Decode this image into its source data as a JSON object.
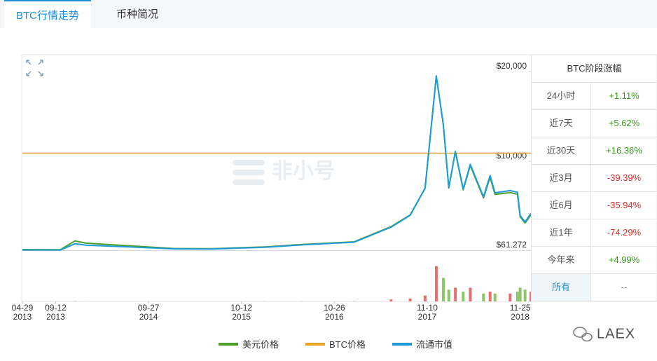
{
  "tabs": [
    "BTC行情走势",
    "币种简况"
  ],
  "watermark": "非小号",
  "brand": "LAEX",
  "chart_data": {
    "type": "line",
    "x": [
      "2013-04-29",
      "2013-10-01",
      "2013-11-30",
      "2014-01-15",
      "2014-06-15",
      "2015-01-15",
      "2015-06-15",
      "2016-01-15",
      "2016-06-15",
      "2017-01-15",
      "2017-06-15",
      "2017-09-01",
      "2017-11-01",
      "2017-12-17",
      "2018-01-15",
      "2018-02-06",
      "2018-03-05",
      "2018-04-06",
      "2018-05-05",
      "2018-06-28",
      "2018-07-25",
      "2018-08-14",
      "2018-10-15",
      "2018-11-14",
      "2018-11-25",
      "2018-12-15",
      "2019-01-08"
    ],
    "xlim": [
      "2013-04-29",
      "2019-01-08"
    ],
    "xticks": [
      {
        "value": "2013-04-29",
        "label": "04-29\n2013"
      },
      {
        "value": "2013-09-12",
        "label": "09-12\n2013"
      },
      {
        "value": "2014-09-27",
        "label": "09-27\n2014"
      },
      {
        "value": "2015-10-12",
        "label": "10-12\n2015"
      },
      {
        "value": "2016-10-26",
        "label": "10-26\n2016"
      },
      {
        "value": "2017-11-10",
        "label": "11-10\n2017"
      },
      {
        "value": "2018-11-25",
        "label": "11-25\n2018"
      }
    ],
    "ylim": [
      61.272,
      21720
    ],
    "yticks": [
      {
        "value": 20000,
        "label": "$20,000"
      },
      {
        "value": 10000,
        "label": "$10,000"
      },
      {
        "value": 61.272,
        "label": "$61.272"
      }
    ],
    "y2lim": [
      0,
      2
    ],
    "y3lim": [
      1.03,
      363.8
    ],
    "series": [
      {
        "name": "美元价格",
        "color": "#4a9e2a",
        "values": [
          140,
          125,
          1100,
          850,
          600,
          250,
          240,
          430,
          700,
          1000,
          2700,
          4000,
          7000,
          19500,
          14000,
          7000,
          11000,
          6800,
          9500,
          5900,
          8200,
          6300,
          6500,
          6300,
          3800,
          3100,
          4000
        ]
      },
      {
        "name": "BTC价格",
        "color": "#e8a524",
        "axis": "y2",
        "values": [
          1,
          1,
          1,
          1,
          1,
          1,
          1,
          1,
          1,
          1,
          1,
          1,
          1,
          1,
          1,
          1,
          1,
          1,
          1,
          1,
          1,
          1,
          1,
          1,
          1,
          1,
          1
        ]
      },
      {
        "name": "流通市值",
        "color": "#1f9bd7",
        "axis": "y3",
        "values": [
          1.55,
          1.48,
          13.2,
          10.4,
          7.7,
          3.5,
          3.4,
          6.5,
          11.0,
          16.1,
          44.3,
          66.2,
          116.6,
          326.6,
          235.2,
          118.0,
          185.9,
          115.3,
          161.5,
          100.9,
          140.6,
          108.4,
          112.5,
          109.3,
          66.0,
          54.0,
          69.9
        ]
      }
    ],
    "volume": {
      "values": [
        0.01,
        0.02,
        0.1,
        0.05,
        0.03,
        0.02,
        0.02,
        0.05,
        0.08,
        0.2,
        1,
        1.5,
        3,
        18,
        12,
        6,
        7,
        5,
        7,
        4,
        5,
        4,
        4,
        5,
        7,
        6,
        5
      ],
      "ylim": [
        0,
        25
      ],
      "colors": {
        "up": "#e56f6f",
        "down": "#8cc56b"
      }
    }
  },
  "stats": {
    "title": "BTC阶段涨幅",
    "rows": [
      [
        "24小时",
        "+1.11%"
      ],
      [
        "近7天",
        "+5.62%"
      ],
      [
        "近30天",
        "+16.36%"
      ],
      [
        "近3月",
        "-39.39%"
      ],
      [
        "近6月",
        "-35.94%"
      ],
      [
        "近1年",
        "-74.29%"
      ],
      [
        "今年来",
        "+4.99%"
      ],
      [
        "所有",
        "--"
      ]
    ]
  }
}
